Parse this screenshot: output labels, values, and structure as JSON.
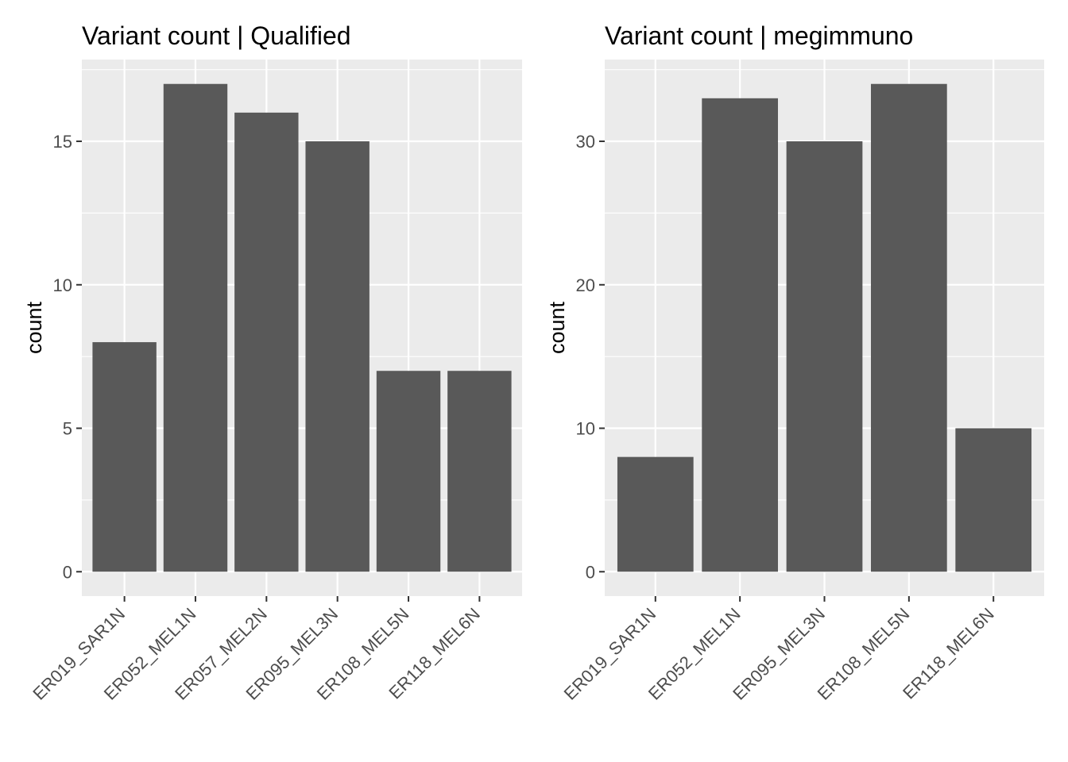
{
  "chart_data": [
    {
      "type": "bar",
      "title": "Variant count | Qualified",
      "xlabel": "",
      "ylabel": "count",
      "categories": [
        "ER019_SAR1N",
        "ER052_MEL1N",
        "ER057_MEL2N",
        "ER095_MEL3N",
        "ER108_MEL5N",
        "ER118_MEL6N"
      ],
      "values": [
        8,
        17,
        16,
        15,
        7,
        7
      ],
      "ylim": [
        -0.85,
        17.85
      ],
      "yticks": [
        0,
        5,
        10,
        15
      ],
      "ytick_labels": [
        "0",
        "5",
        "10",
        "15"
      ],
      "grid": true,
      "legend": "none",
      "colors": {
        "bar": "#595959",
        "panel": "#ebebeb",
        "grid": "#ffffff"
      }
    },
    {
      "type": "bar",
      "title": "Variant count | megimmuno",
      "xlabel": "",
      "ylabel": "count",
      "categories": [
        "ER019_SAR1N",
        "ER052_MEL1N",
        "ER095_MEL3N",
        "ER108_MEL5N",
        "ER118_MEL6N"
      ],
      "values": [
        8,
        33,
        30,
        34,
        10
      ],
      "ylim": [
        -1.7,
        35.7
      ],
      "yticks": [
        0,
        10,
        20,
        30
      ],
      "ytick_labels": [
        "0",
        "10",
        "20",
        "30"
      ],
      "grid": true,
      "legend": "none",
      "colors": {
        "bar": "#595959",
        "panel": "#ebebeb",
        "grid": "#ffffff"
      }
    }
  ]
}
